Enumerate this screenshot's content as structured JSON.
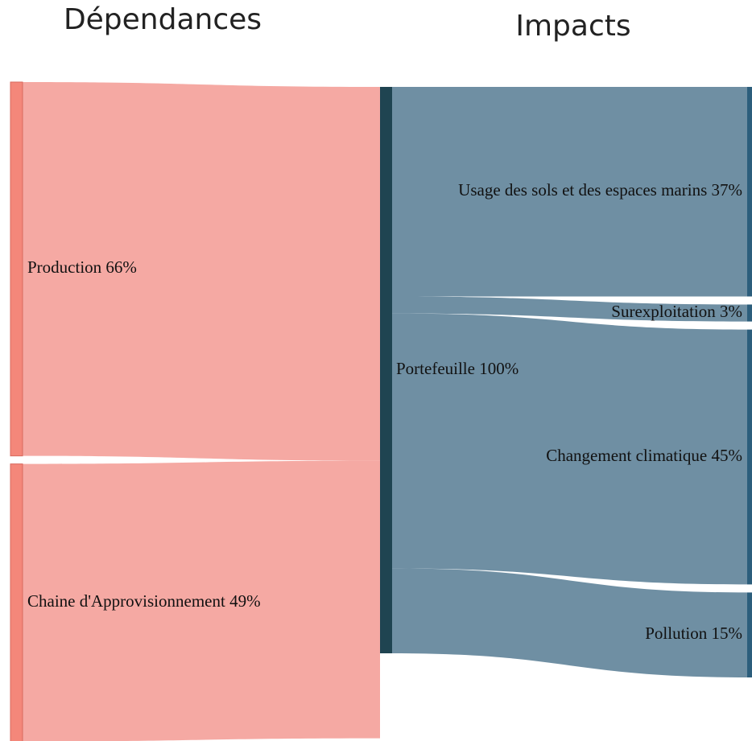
{
  "chart_data": {
    "type": "sankey",
    "columns": [
      "Dépendances",
      "Impacts"
    ],
    "nodes": [
      {
        "label": "Production 66%",
        "value": 66,
        "column": 0,
        "color": "#f4877a"
      },
      {
        "label": "Chaine d'Approvisionnement 49%",
        "value": 49,
        "column": 0,
        "color": "#f4877a"
      },
      {
        "label": "Portefeuille 100%",
        "value": 100,
        "column": 1,
        "color": "#1f4451"
      },
      {
        "label": "Usage des sols et des espaces marins 37%",
        "value": 37,
        "column": 2,
        "color": "#2c5e7c"
      },
      {
        "label": "Surexploitation 3%",
        "value": 3,
        "column": 2,
        "color": "#2c5e7c"
      },
      {
        "label": "Changement climatique 45%",
        "value": 45,
        "column": 2,
        "color": "#2c5e7c"
      },
      {
        "label": "Pollution 15%",
        "value": 15,
        "column": 2,
        "color": "#2c5e7c"
      }
    ],
    "links": [
      {
        "source": 0,
        "target": 2,
        "color": "#f4a099"
      },
      {
        "source": 1,
        "target": 2,
        "color": "#f4a099"
      },
      {
        "source": 2,
        "target": 3,
        "color": "#5f8399"
      },
      {
        "source": 2,
        "target": 4,
        "color": "#5f8399"
      },
      {
        "source": 2,
        "target": 5,
        "color": "#5f8399"
      },
      {
        "source": 2,
        "target": 6,
        "color": "#5f8399"
      }
    ]
  }
}
